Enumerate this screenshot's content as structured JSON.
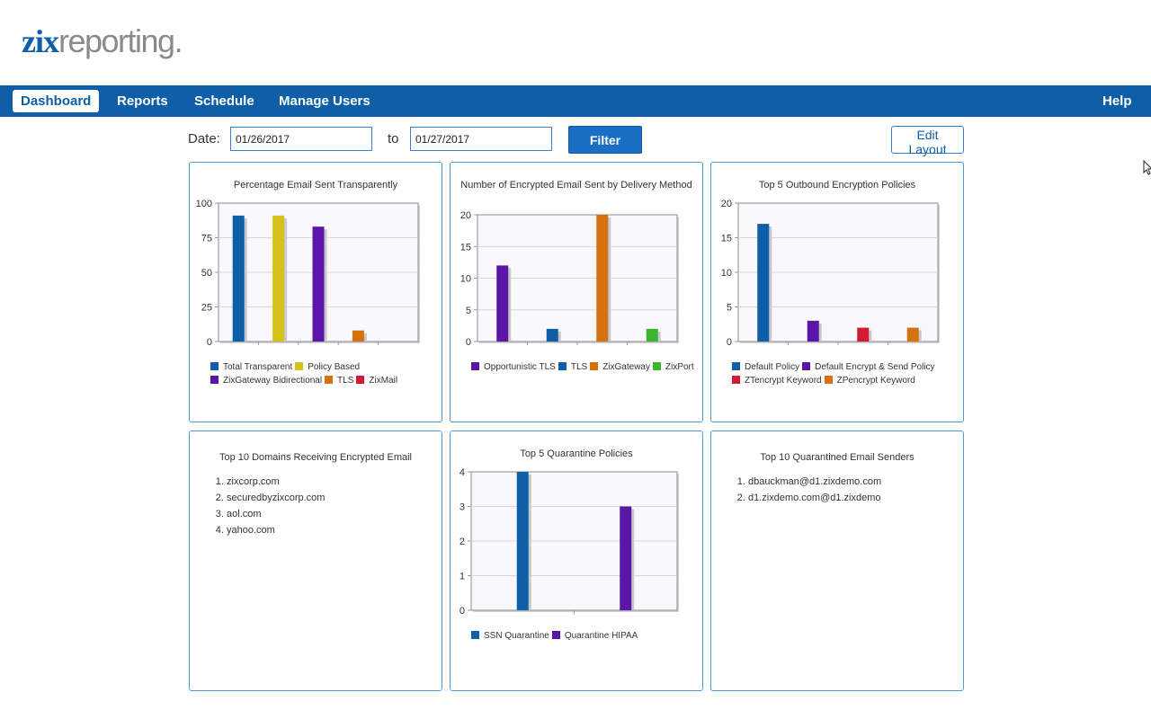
{
  "logo": {
    "part1": "zix",
    "part2": "reporting",
    "dot": "."
  },
  "nav": {
    "dashboard": "Dashboard",
    "reports": "Reports",
    "schedule": "Schedule",
    "manage_users": "Manage Users",
    "help": "Help"
  },
  "filter": {
    "date_label": "Date:",
    "from_value": "01/26/2017",
    "to_label": "to",
    "to_value": "01/27/2017",
    "filter_label": "Filter",
    "edit_layout_label": "Edit Layout"
  },
  "panels": {
    "transparent": {
      "title": "Percentage Email Sent Transparently"
    },
    "delivery": {
      "title": "Number of Encrypted Email Sent by Delivery Method"
    },
    "outbound": {
      "title": "Top 5 Outbound Encryption Policies"
    },
    "domains": {
      "title": "Top 10 Domains Receiving Encrypted Email",
      "items": [
        "zixcorp.com",
        "securedbyzixcorp.com",
        "aol.com",
        "yahoo.com"
      ]
    },
    "quarantine": {
      "title": "Top 5 Quarantine Policies"
    },
    "senders": {
      "title": "Top 10 Quarantined Email Senders",
      "items": [
        "dbauckman@d1.zixdemo.com",
        "d1.zixdemo.com@d1.zixdemo"
      ]
    }
  },
  "chart_data": [
    {
      "type": "bar",
      "title": "Percentage Email Sent Transparently",
      "categories": [
        "Total Transparent",
        "Policy Based",
        "ZixGateway Bidirectional",
        "TLS",
        "ZixMail"
      ],
      "values": [
        91,
        91,
        83,
        8,
        0
      ],
      "colors": [
        "#0e5ea8",
        "#d4c21a",
        "#5b16a8",
        "#d4720f",
        "#d11b34"
      ],
      "ylim": [
        0,
        100
      ],
      "yticks": [
        "100",
        "75",
        "50",
        "25",
        "0"
      ],
      "ytick_values": [
        100,
        75,
        50,
        25,
        0
      ],
      "slots": 5,
      "grid": true,
      "legend": "bottom"
    },
    {
      "type": "bar",
      "title": "Number of Encrypted Email Sent by Delivery Method",
      "categories": [
        "Opportunistic TLS",
        "TLS",
        "ZixGateway",
        "ZixPort"
      ],
      "values": [
        12,
        2,
        20,
        2
      ],
      "colors": [
        "#5b16a8",
        "#0e5ea8",
        "#d4720f",
        "#3ab52e"
      ],
      "ylim": [
        0,
        20
      ],
      "yticks": [
        "20",
        "15",
        "10",
        "5",
        "0"
      ],
      "ytick_values": [
        20,
        15,
        10,
        5,
        0
      ],
      "slots": 4,
      "grid": true,
      "legend": "bottom"
    },
    {
      "type": "bar",
      "title": "Top 5 Outbound Encryption Policies",
      "categories": [
        "Default Policy",
        "Default Encrypt & Send Policy",
        "ZTencrypt Keyword",
        "ZPencrypt Keyword"
      ],
      "values": [
        17,
        3,
        2,
        2
      ],
      "colors": [
        "#0e5ea8",
        "#5b16a8",
        "#d11b34",
        "#d4720f"
      ],
      "ylim": [
        0,
        20
      ],
      "yticks": [
        "20",
        "15",
        "10",
        "5",
        "0"
      ],
      "ytick_values": [
        20,
        15,
        10,
        5,
        0
      ],
      "slots": 4,
      "grid": true,
      "legend": "bottom"
    },
    {
      "type": "bar",
      "title": "Top 5 Quarantine Policies",
      "categories": [
        "SSN Quarantine",
        "Quarantine HIPAA"
      ],
      "values": [
        4,
        3
      ],
      "colors": [
        "#0e5ea8",
        "#5b16a8"
      ],
      "ylim": [
        0,
        4
      ],
      "yticks": [
        "4",
        "3",
        "2",
        "1",
        "0"
      ],
      "ytick_values": [
        4,
        3,
        2,
        1,
        0
      ],
      "slots": 2,
      "grid": true,
      "legend": "bottom"
    }
  ]
}
